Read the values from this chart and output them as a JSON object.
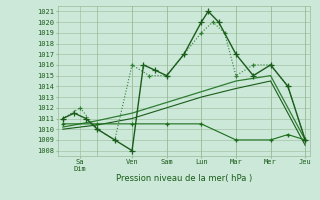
{
  "xlabel": "Pression niveau de la mer( hPa )",
  "ylim": [
    1007.5,
    1021.5
  ],
  "yticks": [
    1008,
    1009,
    1010,
    1011,
    1012,
    1013,
    1014,
    1015,
    1016,
    1017,
    1018,
    1019,
    1020,
    1021
  ],
  "background_color": "#cce8d8",
  "grid_color": "#99bb99",
  "day_labels": [
    "Sa|Dim",
    "Ven",
    "Sam",
    "Lun",
    "Mar",
    "Mer",
    "Jeu"
  ],
  "day_positions": [
    0.5,
    2,
    3,
    4,
    5,
    6,
    7
  ],
  "dividers": [
    1,
    2,
    3,
    4,
    5,
    6,
    7
  ],
  "series": [
    {
      "name": "line1_solid_markers",
      "x": [
        0,
        0.33,
        0.67,
        1,
        1.5,
        2,
        2.33,
        2.67,
        3,
        3.5,
        4,
        4.2,
        4.5,
        5,
        5.5,
        6,
        6.5,
        7
      ],
      "y": [
        1011,
        1011.5,
        1011,
        1010,
        1009,
        1008,
        1016,
        1015.5,
        1015,
        1017,
        1020,
        1021,
        1020,
        1017,
        1015,
        1016,
        1014,
        1009
      ],
      "color": "#1a5c1a",
      "linewidth": 1.0,
      "linestyle": "-",
      "marker": "+",
      "markersize": 4,
      "zorder": 5
    },
    {
      "name": "line2_dotted_markers",
      "x": [
        0,
        0.5,
        1,
        1.5,
        2,
        2.5,
        3,
        3.5,
        4,
        4.33,
        4.67,
        5,
        5.5,
        6,
        6.5,
        7
      ],
      "y": [
        1011,
        1012,
        1010,
        1009,
        1016,
        1015,
        1015,
        1017,
        1019,
        1020,
        1019,
        1015,
        1016,
        1016,
        1014,
        1009
      ],
      "color": "#2e7d32",
      "linewidth": 0.8,
      "linestyle": ":",
      "marker": "+",
      "markersize": 3.5,
      "zorder": 4
    },
    {
      "name": "line3_trend_upper",
      "x": [
        0,
        1,
        2,
        3,
        4,
        5,
        6,
        7
      ],
      "y": [
        1010.2,
        1010.8,
        1011.5,
        1012.5,
        1013.5,
        1014.5,
        1015.0,
        1009.0
      ],
      "color": "#2e7d32",
      "linewidth": 0.9,
      "linestyle": "-",
      "marker": null,
      "markersize": 0,
      "zorder": 3
    },
    {
      "name": "line4_trend_lower",
      "x": [
        0,
        1,
        2,
        3,
        4,
        5,
        6,
        7
      ],
      "y": [
        1010.0,
        1010.4,
        1011.0,
        1012.0,
        1013.0,
        1013.8,
        1014.5,
        1008.5
      ],
      "color": "#1a5c1a",
      "linewidth": 0.8,
      "linestyle": "-",
      "marker": null,
      "markersize": 0,
      "zorder": 3
    },
    {
      "name": "line5_low_flat",
      "x": [
        0,
        1,
        2,
        3,
        4,
        5,
        6,
        6.5,
        7
      ],
      "y": [
        1010.5,
        1010.5,
        1010.5,
        1010.5,
        1010.5,
        1009.0,
        1009.0,
        1009.5,
        1009.0
      ],
      "color": "#1a6e1a",
      "linewidth": 0.8,
      "linestyle": "-",
      "marker": "+",
      "markersize": 3.5,
      "zorder": 3
    }
  ]
}
